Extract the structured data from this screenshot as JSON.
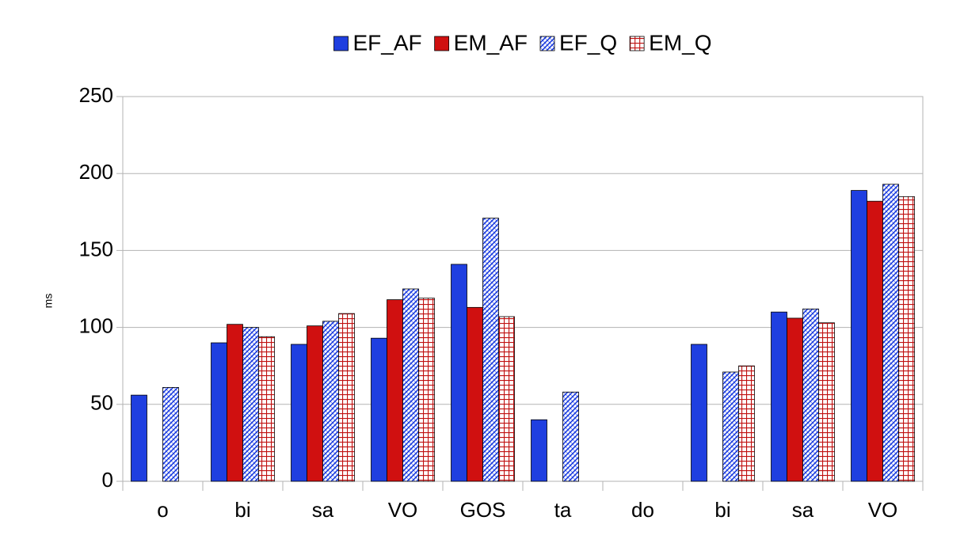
{
  "chart_data": {
    "type": "bar",
    "y_label": "ms",
    "categories": [
      "o",
      "bi",
      "sa",
      "VO",
      "GOS",
      "ta",
      "do",
      "bi",
      "sa",
      "VO"
    ],
    "series": [
      {
        "name": "EF_AF",
        "color": "#1f3fe0",
        "fill_style": "solid",
        "values": [
          56,
          90,
          89,
          93,
          141,
          40,
          null,
          89,
          110,
          189
        ]
      },
      {
        "name": "EM_AF",
        "color": "#d01010",
        "fill_style": "solid",
        "values": [
          null,
          102,
          101,
          118,
          113,
          null,
          null,
          null,
          106,
          182
        ]
      },
      {
        "name": "EF_Q",
        "color": "#1f3fe0",
        "fill_style": "diagonal",
        "values": [
          61,
          100,
          104,
          125,
          171,
          58,
          null,
          71,
          112,
          193
        ]
      },
      {
        "name": "EM_Q",
        "color": "#c01010",
        "fill_style": "grid",
        "values": [
          null,
          94,
          109,
          119,
          107,
          null,
          null,
          75,
          103,
          185
        ]
      }
    ],
    "ylim": [
      0,
      250
    ],
    "yticks": [
      0,
      50,
      100,
      150,
      200,
      250
    ],
    "grid": true,
    "legend": "top"
  }
}
